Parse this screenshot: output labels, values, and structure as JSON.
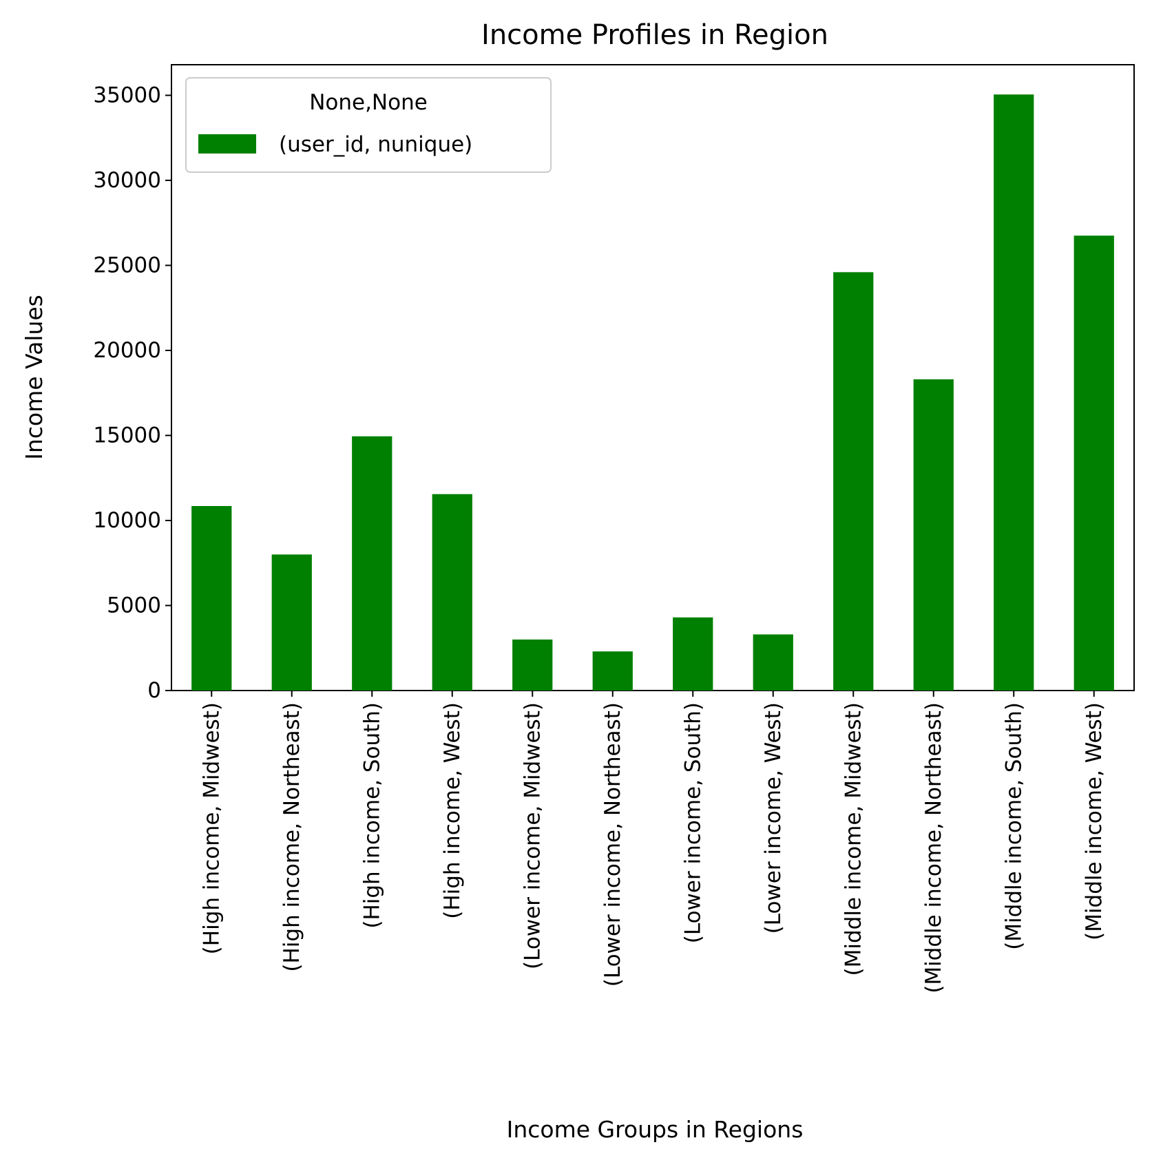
{
  "chart_data": {
    "type": "bar",
    "title": "Income Profiles in Region",
    "xlabel": "Income Groups in Regions",
    "ylabel": "Income Values",
    "categories": [
      "(High income, Midwest)",
      "(High income, Northeast)",
      "(High income, South)",
      "(High income, West)",
      "(Lower income, Midwest)",
      "(Lower income, Northeast)",
      "(Lower income, South)",
      "(Lower income, West)",
      "(Middle income, Midwest)",
      "(Middle income, Northeast)",
      "(Middle income, South)",
      "(Middle income, West)"
    ],
    "series": [
      {
        "name": "(user_id, nunique)",
        "values": [
          10850,
          8000,
          14950,
          11550,
          3000,
          2300,
          4300,
          3300,
          24600,
          18300,
          35050,
          26750
        ],
        "color": "#008000"
      }
    ],
    "ylim": [
      0,
      36800
    ],
    "yticks": [
      0,
      5000,
      10000,
      15000,
      20000,
      25000,
      30000,
      35000
    ],
    "legend": {
      "title": "None,None",
      "placement": "top-left"
    },
    "grid": false
  }
}
